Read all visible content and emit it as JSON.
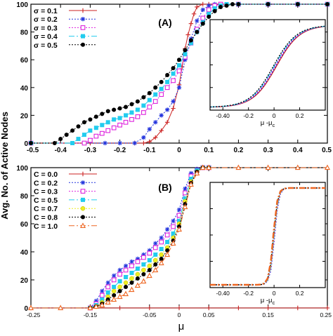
{
  "figure": {
    "ylabel": "Avg. No. of Active Nodes",
    "xlabel": "μ"
  },
  "chart_data": [
    {
      "type": "line",
      "panel_label": "(A)",
      "xlim": [
        -0.5,
        0.5
      ],
      "ylim": [
        0,
        100
      ],
      "xticks": [
        -0.5,
        -0.4,
        -0.3,
        -0.2,
        -0.1,
        0,
        0.1,
        0.2,
        0.3,
        0.4,
        0.5
      ],
      "xtick_labels": [
        "-0.5",
        "-0.4",
        "-0.3",
        "-0.2",
        "-0.1",
        "0",
        "0.1",
        "0.2",
        "0.3",
        "0.4",
        "0.5"
      ],
      "yticks": [
        0,
        20,
        40,
        60,
        80,
        100
      ],
      "ytick_labels": [
        "0",
        "20",
        "40",
        "60",
        "80",
        "100"
      ],
      "legend_position": "top-left",
      "series": [
        {
          "name": "σ = 0.1",
          "color": "#cc2222",
          "marker": "plus",
          "dash": "",
          "x": [
            -0.5,
            -0.3,
            -0.15,
            -0.12,
            -0.1,
            -0.08,
            -0.06,
            -0.04,
            -0.02,
            0,
            0.01,
            0.02,
            0.03,
            0.04,
            0.05,
            0.06,
            0.08,
            0.1,
            0.2,
            0.3,
            0.4,
            0.5
          ],
          "y": [
            0,
            0,
            0,
            0,
            1,
            4,
            9,
            15,
            25,
            42,
            55,
            68,
            78,
            86,
            93,
            98,
            100,
            100,
            100,
            100,
            100,
            100
          ]
        },
        {
          "name": "σ = 0.2",
          "color": "#2233dd",
          "marker": "star",
          "dash": "2,2",
          "x": [
            -0.5,
            -0.25,
            -0.2,
            -0.15,
            -0.12,
            -0.1,
            -0.08,
            -0.06,
            -0.04,
            -0.02,
            0,
            0.02,
            0.04,
            0.06,
            0.08,
            0.1,
            0.12,
            0.2,
            0.3,
            0.4,
            0.5
          ],
          "y": [
            0,
            0,
            0,
            0,
            4,
            10,
            15,
            20,
            24,
            30,
            40,
            60,
            75,
            88,
            96,
            99,
            100,
            100,
            100,
            100,
            100
          ]
        },
        {
          "name": "σ = 0.3",
          "color": "#dd22dd",
          "marker": "square",
          "dash": "2,2",
          "x": [
            -0.5,
            -0.32,
            -0.3,
            -0.28,
            -0.26,
            -0.24,
            -0.22,
            -0.2,
            -0.18,
            -0.16,
            -0.14,
            -0.12,
            -0.1,
            -0.08,
            -0.06,
            -0.04,
            -0.02,
            0,
            0.02,
            0.04,
            0.06,
            0.08,
            0.1,
            0.12,
            0.14,
            0.2,
            0.3,
            0.4,
            0.5
          ],
          "y": [
            0,
            0,
            2,
            5,
            7,
            9,
            11,
            13,
            15,
            17,
            19,
            22,
            26,
            30,
            35,
            40,
            45,
            52,
            62,
            72,
            82,
            90,
            96,
            99,
            100,
            100,
            100,
            100,
            100
          ]
        },
        {
          "name": "σ = 0.4",
          "color": "#22ccee",
          "marker": "fsquare",
          "dash": "8,3,2,3",
          "x": [
            -0.5,
            -0.36,
            -0.34,
            -0.32,
            -0.3,
            -0.28,
            -0.26,
            -0.24,
            -0.22,
            -0.2,
            -0.18,
            -0.16,
            -0.14,
            -0.12,
            -0.1,
            -0.08,
            -0.06,
            -0.04,
            -0.02,
            0,
            0.02,
            0.04,
            0.06,
            0.08,
            0.1,
            0.12,
            0.14,
            0.16,
            0.2,
            0.3,
            0.4,
            0.5
          ],
          "y": [
            0,
            0,
            3,
            6,
            9,
            11,
            13,
            15,
            17,
            18,
            20,
            22,
            24,
            27,
            31,
            35,
            39,
            44,
            50,
            56,
            64,
            72,
            80,
            87,
            93,
            97,
            99,
            100,
            100,
            100,
            100,
            100
          ]
        },
        {
          "name": "σ = 0.5",
          "color": "#000000",
          "marker": "circle",
          "dash": "2,2",
          "x": [
            -0.5,
            -0.42,
            -0.4,
            -0.38,
            -0.36,
            -0.34,
            -0.32,
            -0.3,
            -0.28,
            -0.26,
            -0.24,
            -0.22,
            -0.2,
            -0.18,
            -0.16,
            -0.14,
            -0.12,
            -0.1,
            -0.08,
            -0.06,
            -0.04,
            -0.02,
            0,
            0.02,
            0.04,
            0.06,
            0.08,
            0.1,
            0.12,
            0.14,
            0.16,
            0.18,
            0.2,
            0.3,
            0.4,
            0.5
          ],
          "y": [
            0,
            0,
            3,
            6,
            9,
            12,
            15,
            17,
            19,
            21,
            23,
            24,
            25,
            26,
            28,
            30,
            33,
            36,
            40,
            44,
            49,
            54,
            60,
            67,
            74,
            80,
            86,
            91,
            95,
            98,
            99,
            100,
            100,
            100,
            100,
            100
          ]
        }
      ],
      "inset": {
        "xlabel": "μ -μ",
        "xlabel_sub": "c",
        "xlim": [
          -0.5,
          0.4
        ],
        "xticks": [
          -0.4,
          -0.2,
          0,
          0.2
        ],
        "xtick_labels": [
          "-0.40",
          "-0.2",
          "0",
          "0.2"
        ]
      }
    },
    {
      "type": "line",
      "panel_label": "(B)",
      "xlim": [
        -0.25,
        0.25
      ],
      "ylim": [
        0,
        100
      ],
      "xticks": [
        -0.25,
        -0.15,
        -0.05,
        0,
        0.05,
        0.15,
        0.25
      ],
      "xtick_labels": [
        "-0.25",
        "-0.15",
        "-0.05",
        "0",
        "0.05",
        "0.15",
        "0.25"
      ],
      "yticks": [
        0,
        20,
        40,
        60,
        80,
        100
      ],
      "ytick_labels": [
        "0",
        "20",
        "40",
        "60",
        "80",
        "100"
      ],
      "legend_position": "top-left",
      "series": [
        {
          "name": "C = 0.0",
          "color": "#cc2222",
          "marker": "plus",
          "dash": "",
          "x": [
            -0.25,
            -0.15,
            -0.1,
            -0.05,
            0,
            0.05,
            0.1,
            0.15,
            0.2,
            0.25
          ],
          "y": [
            0,
            0,
            0,
            0,
            0,
            0,
            0,
            0,
            0,
            0
          ]
        },
        {
          "name": "C = 0.2",
          "color": "#2233dd",
          "marker": "star",
          "dash": "2,2",
          "x": [
            -0.15,
            -0.14,
            -0.13,
            -0.12,
            -0.11,
            -0.1,
            -0.09,
            -0.08,
            -0.07,
            -0.06,
            -0.05,
            -0.04,
            -0.03,
            -0.02,
            -0.01,
            0,
            0.01,
            0.02,
            0.03,
            0.04,
            0.05
          ],
          "y": [
            0,
            5,
            12,
            18,
            23,
            27,
            30,
            33,
            35,
            38,
            41,
            46,
            50,
            56,
            62,
            70,
            85,
            96,
            99,
            100,
            100
          ]
        },
        {
          "name": "C = 0.3",
          "color": "#dd22dd",
          "marker": "square",
          "dash": "2,2",
          "x": [
            -0.15,
            -0.14,
            -0.13,
            -0.12,
            -0.11,
            -0.1,
            -0.09,
            -0.08,
            -0.07,
            -0.06,
            -0.05,
            -0.04,
            -0.03,
            -0.02,
            -0.01,
            0,
            0.01,
            0.02,
            0.03,
            0.04,
            0.05
          ],
          "y": [
            0,
            3,
            9,
            15,
            20,
            24,
            27,
            30,
            33,
            36,
            39,
            43,
            47,
            52,
            58,
            66,
            82,
            94,
            98,
            100,
            100
          ]
        },
        {
          "name": "C = 0.5",
          "color": "#22ccee",
          "marker": "fsquare",
          "dash": "8,3,2,3",
          "x": [
            -0.15,
            -0.14,
            -0.13,
            -0.12,
            -0.11,
            -0.1,
            -0.09,
            -0.08,
            -0.07,
            -0.06,
            -0.05,
            -0.04,
            -0.03,
            -0.02,
            -0.01,
            0,
            0.01,
            0.02,
            0.03,
            0.04,
            0.05
          ],
          "y": [
            0,
            2,
            6,
            11,
            15,
            19,
            22,
            25,
            28,
            31,
            34,
            38,
            42,
            47,
            53,
            62,
            78,
            92,
            98,
            100,
            100
          ]
        },
        {
          "name": "C = 0.7",
          "color": "#eeee22",
          "marker": "fcircle",
          "dash": "2,2",
          "x": [
            -0.15,
            -0.14,
            -0.13,
            -0.12,
            -0.11,
            -0.1,
            -0.09,
            -0.08,
            -0.07,
            -0.06,
            -0.05,
            -0.04,
            -0.03,
            -0.02,
            -0.01,
            0,
            0.01,
            0.02,
            0.03,
            0.04,
            0.05
          ],
          "y": [
            0,
            1,
            4,
            8,
            12,
            15,
            18,
            21,
            24,
            27,
            30,
            34,
            38,
            43,
            50,
            60,
            76,
            90,
            97,
            100,
            100
          ]
        },
        {
          "name": "C = 0.8",
          "color": "#000000",
          "marker": "circle",
          "dash": "2,2",
          "x": [
            -0.15,
            -0.14,
            -0.13,
            -0.12,
            -0.11,
            -0.1,
            -0.09,
            -0.08,
            -0.07,
            -0.06,
            -0.05,
            -0.04,
            -0.03,
            -0.02,
            -0.01,
            0,
            0.01,
            0.02,
            0.03,
            0.04,
            0.05
          ],
          "y": [
            0,
            1,
            3,
            6,
            9,
            12,
            15,
            18,
            21,
            24,
            27,
            31,
            35,
            41,
            48,
            58,
            74,
            89,
            97,
            100,
            100
          ]
        },
        {
          "name": "C = 1.0",
          "color": "#ee6622",
          "marker": "triangle",
          "dash": "8,3,2,3",
          "x": [
            -0.25,
            -0.2,
            -0.15,
            -0.14,
            -0.13,
            -0.12,
            -0.11,
            -0.1,
            -0.09,
            -0.08,
            -0.07,
            -0.06,
            -0.05,
            -0.04,
            -0.03,
            -0.02,
            -0.01,
            0,
            0.01,
            0.02,
            0.03,
            0.04,
            0.05,
            0.1,
            0.15,
            0.2,
            0.25
          ],
          "y": [
            0,
            0,
            0,
            1,
            2,
            4,
            6,
            8,
            10,
            13,
            16,
            19,
            23,
            27,
            32,
            38,
            46,
            56,
            72,
            88,
            96,
            100,
            100,
            100,
            100,
            100,
            100
          ]
        }
      ],
      "inset": {
        "xlabel": "μ -μ",
        "xlabel_sub": "c",
        "xlim": [
          -0.5,
          0.4
        ],
        "xticks": [
          -0.4,
          -0.2,
          0,
          0.2
        ],
        "xtick_labels": [
          "-0.40",
          "-0.2",
          "0",
          "0.2"
        ]
      }
    }
  ]
}
